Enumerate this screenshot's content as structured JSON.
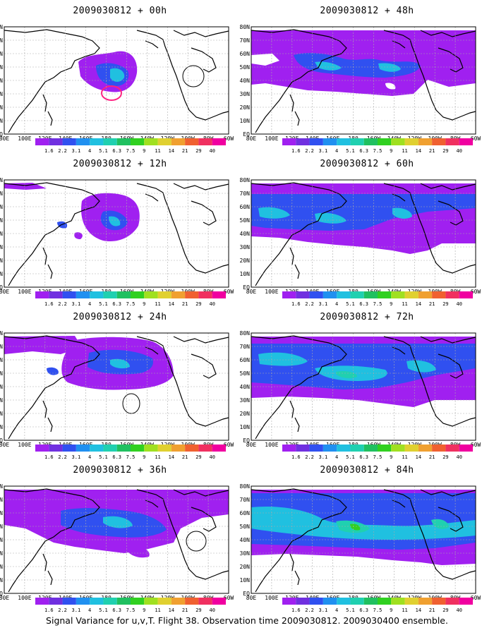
{
  "panels": [
    {
      "title": "2009030812 + 00h"
    },
    {
      "title": "2009030812 + 48h"
    },
    {
      "title": "2009030812 + 12h"
    },
    {
      "title": "2009030812 + 60h"
    },
    {
      "title": "2009030812 + 24h"
    },
    {
      "title": "2009030812 + 72h"
    },
    {
      "title": "2009030812 + 36h"
    },
    {
      "title": "2009030812 + 84h"
    }
  ],
  "lat_labels": [
    "80N",
    "70N",
    "60N",
    "50N",
    "40N",
    "30N",
    "20N",
    "10N",
    "EQ"
  ],
  "lon_labels": [
    "80E",
    "100E",
    "120E",
    "140E",
    "160E",
    "180",
    "160W",
    "140W",
    "120W",
    "100W",
    "80W",
    "60W"
  ],
  "colorbar": {
    "labels": [
      "1.6",
      "2.2",
      "3.1",
      "4",
      "5.1",
      "6.3",
      "7.5",
      "9",
      "11",
      "14",
      "21",
      "29",
      "40"
    ],
    "colors": [
      "#a020f0",
      "#7030e0",
      "#3050f0",
      "#2090f0",
      "#20c0e0",
      "#20d0b0",
      "#20c060",
      "#30d020",
      "#a0e020",
      "#e0d030",
      "#f0a030",
      "#f06030",
      "#f03060",
      "#f000a0"
    ]
  },
  "footer": "Signal Variance for u,v,T. Flight 38. Observation time 2009030812. 2009030400 ensemble."
}
